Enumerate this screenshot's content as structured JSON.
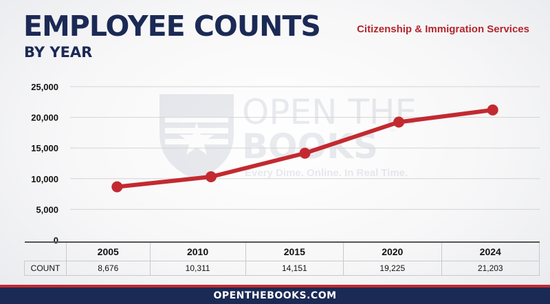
{
  "header": {
    "title": "EMPLOYEE COUNTS",
    "subtitle": "BY YEAR",
    "agency": "Citizenship & Immigration Services"
  },
  "watermark": {
    "line1": "OPEN THE",
    "line2": "BOOKS",
    "tagline": "Every Dime. Online. In Real Time.",
    "tm": "™"
  },
  "chart_data": {
    "type": "line",
    "x": [
      "2005",
      "2010",
      "2015",
      "2020",
      "2024"
    ],
    "series": [
      {
        "values": [
          8676,
          10311,
          14151,
          19225,
          21203
        ],
        "color": "#c22a30"
      }
    ],
    "ylim": [
      0,
      25000
    ],
    "yticks": [
      0,
      5000,
      10000,
      15000,
      20000,
      25000
    ],
    "ytick_labels": [
      "0",
      "5,000",
      "10,000",
      "15,000",
      "20,000",
      "25,000"
    ],
    "grid": true
  },
  "table": {
    "row_label": "COUNT",
    "years": [
      "2005",
      "2010",
      "2015",
      "2020",
      "2024"
    ],
    "counts": [
      "8,676",
      "10,311",
      "14,151",
      "19,225",
      "21,203"
    ]
  },
  "footer": {
    "text": "OPENTHEBOOKS.COM"
  },
  "colors": {
    "navy": "#1b2a55",
    "red": "#c22a30"
  }
}
